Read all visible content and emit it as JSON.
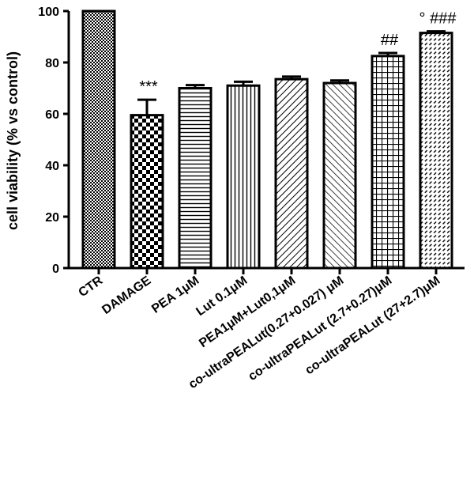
{
  "chart_data": {
    "type": "bar",
    "title": "",
    "xlabel": "",
    "ylabel": "cell viability (% vs control)",
    "ylim": [
      0,
      100
    ],
    "yticks": [
      0,
      20,
      40,
      60,
      80,
      100
    ],
    "grid": false,
    "categories": [
      "CTR",
      "DAMAGE",
      "PEA 1μM",
      "Lut 0.1μM",
      "PEA1μM+Lut0,1μM",
      "co-ultraPEALut(0.27+0.027)  μM",
      "co-ultraPEALut (2.7+0.27)μM",
      "co-ultraPEALut (27+2.7)μM"
    ],
    "values": [
      100,
      59.5,
      70,
      71,
      73.5,
      72,
      82.5,
      91.5
    ],
    "errors": [
      0,
      6,
      1.2,
      1.5,
      1,
      1,
      1.2,
      0.6
    ],
    "annotations": [
      "",
      "***",
      "",
      "",
      "",
      "",
      "##",
      "°  ###"
    ],
    "colors": {
      "bar_edge": "#000000",
      "fill": "#ffffff"
    }
  }
}
